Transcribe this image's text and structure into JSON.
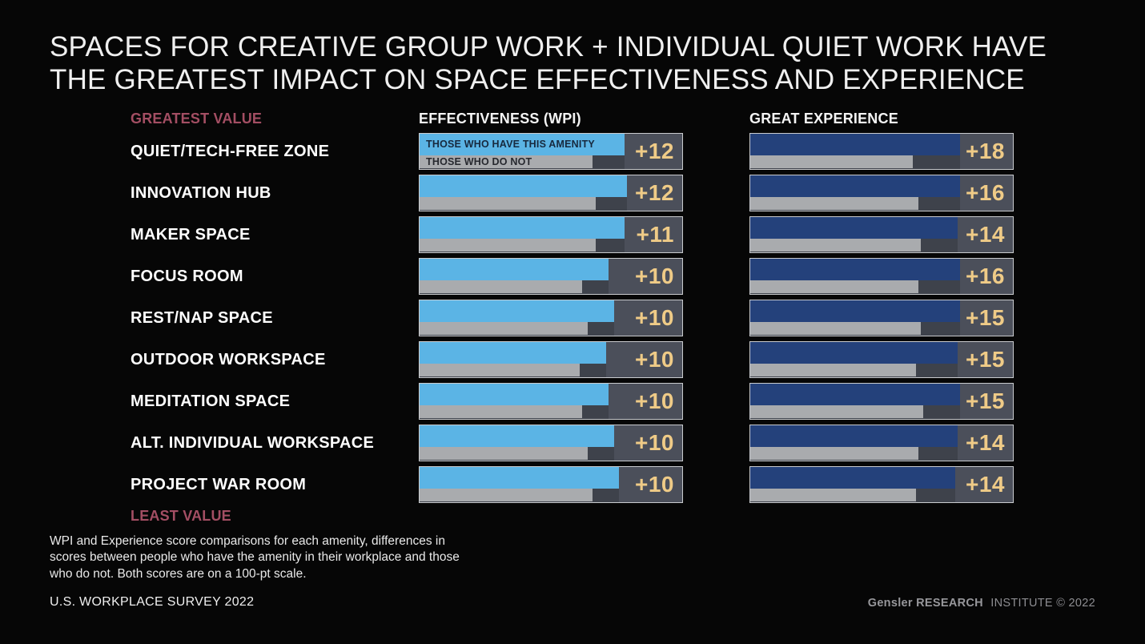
{
  "title": {
    "line1": "SPACES FOR CREATIVE GROUP WORK + INDIVIDUAL QUIET WORK HAVE",
    "line2": "THE GREATEST IMPACT ON SPACE EFFECTIVENESS AND EXPERIENCE"
  },
  "labels": {
    "greatest": "GREATEST VALUE",
    "least": "LEAST VALUE"
  },
  "columns": {
    "effectiveness": "EFFECTIVENESS (WPI)",
    "experience": "GREAT EXPERIENCE"
  },
  "legend": {
    "have": "THOSE WHO HAVE THIS AMENITY",
    "not": "THOSE WHO DO NOT"
  },
  "rows": [
    {
      "category": "QUIET/TECH-FREE ZONE",
      "effectiveness": {
        "value": "+12",
        "have_pct": 78,
        "not_pct": 66
      },
      "experience": {
        "value": "+18",
        "have_pct": 80,
        "not_pct": 62
      }
    },
    {
      "category": "INNOVATION HUB",
      "effectiveness": {
        "value": "+12",
        "have_pct": 79,
        "not_pct": 67
      },
      "experience": {
        "value": "+16",
        "have_pct": 80,
        "not_pct": 64
      }
    },
    {
      "category": "MAKER SPACE",
      "effectiveness": {
        "value": "+11",
        "have_pct": 78,
        "not_pct": 67
      },
      "experience": {
        "value": "+14",
        "have_pct": 79,
        "not_pct": 65
      }
    },
    {
      "category": "FOCUS ROOM",
      "effectiveness": {
        "value": "+10",
        "have_pct": 72,
        "not_pct": 62
      },
      "experience": {
        "value": "+16",
        "have_pct": 80,
        "not_pct": 64
      }
    },
    {
      "category": "REST/NAP SPACE",
      "effectiveness": {
        "value": "+10",
        "have_pct": 74,
        "not_pct": 64
      },
      "experience": {
        "value": "+15",
        "have_pct": 80,
        "not_pct": 65
      }
    },
    {
      "category": "OUTDOOR WORKSPACE",
      "effectiveness": {
        "value": "+10",
        "have_pct": 71,
        "not_pct": 61
      },
      "experience": {
        "value": "+15",
        "have_pct": 79,
        "not_pct": 63
      }
    },
    {
      "category": "MEDITATION SPACE",
      "effectiveness": {
        "value": "+10",
        "have_pct": 72,
        "not_pct": 62
      },
      "experience": {
        "value": "+15",
        "have_pct": 80,
        "not_pct": 66
      }
    },
    {
      "category": "ALT. INDIVIDUAL WORKSPACE",
      "effectiveness": {
        "value": "+10",
        "have_pct": 74,
        "not_pct": 64
      },
      "experience": {
        "value": "+14",
        "have_pct": 79,
        "not_pct": 64
      }
    },
    {
      "category": "PROJECT WAR ROOM",
      "effectiveness": {
        "value": "+10",
        "have_pct": 76,
        "not_pct": 66
      },
      "experience": {
        "value": "+14",
        "have_pct": 78,
        "not_pct": 63
      }
    }
  ],
  "footnote": "WPI and Experience score comparisons for each amenity, differences in scores between people who have the amenity in their workplace and those who do not. Both scores are on a 100-pt scale.",
  "source": "U.S. WORKPLACE SURVEY 2022",
  "branding": {
    "bold": "Gensler RESEARCH",
    "regular": "INSTITUTE © 2022"
  },
  "colors": {
    "bg": "#060606",
    "title_text": "#efefef",
    "pink": "#a34e63",
    "blue": "#5bb4e5",
    "navy": "#24417b",
    "gray_bar": "#a9abae",
    "box_bg": "#3e424b",
    "value_bg": "#4b4f5a",
    "box_border": "#c9cbce",
    "gold": "#efcb87",
    "legend_have_text": "#17293e",
    "legend_not_text": "#26282e",
    "brand_gray": "#97979b"
  },
  "chart_data": {
    "type": "bar",
    "title": "Spaces for creative group work + individual quiet work have the greatest impact on space effectiveness and experience",
    "categories": [
      "QUIET/TECH-FREE ZONE",
      "INNOVATION HUB",
      "MAKER SPACE",
      "FOCUS ROOM",
      "REST/NAP SPACE",
      "OUTDOOR WORKSPACE",
      "MEDITATION SPACE",
      "ALT. INDIVIDUAL WORKSPACE",
      "PROJECT WAR ROOM"
    ],
    "series": [
      {
        "name": "Effectiveness (WPI) difference",
        "values": [
          12,
          12,
          11,
          10,
          10,
          10,
          10,
          10,
          10
        ]
      },
      {
        "name": "Great Experience difference",
        "values": [
          18,
          16,
          14,
          16,
          15,
          15,
          15,
          14,
          14
        ]
      }
    ],
    "sub_series_legend": [
      "Those who have this amenity",
      "Those who do not"
    ],
    "orientation": "horizontal",
    "value_scale": "100-pt scale",
    "category_order_note": "Sorted from greatest value (top) to least value (bottom)",
    "legend_position": "inside first bar of effectiveness column",
    "grid": false
  }
}
